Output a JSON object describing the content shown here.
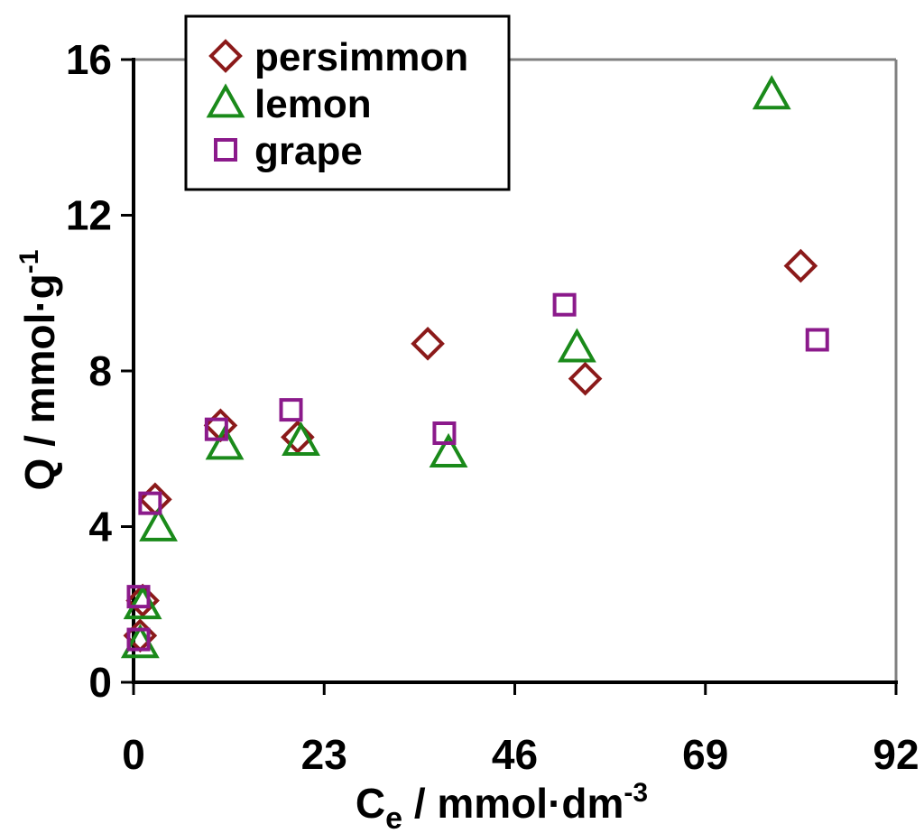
{
  "chart_data": {
    "type": "scatter",
    "title": "",
    "xlabel": {
      "base": "C",
      "sub": "e",
      "rest": " / mmol·dm",
      "sup": "-3"
    },
    "ylabel": {
      "base": "Q / mmol·g",
      "sup": "-1"
    },
    "xlim": [
      0,
      92
    ],
    "ylim": [
      0,
      16
    ],
    "xticks": [
      0,
      23,
      46,
      69,
      92
    ],
    "yticks": [
      0,
      4,
      8,
      12,
      16
    ],
    "grid": false,
    "legend_position": "top-left",
    "series": [
      {
        "name": "persimmon",
        "marker": "diamond",
        "color": "#8B1A1A",
        "x": [
          0.8,
          1.1,
          2.6,
          10.5,
          19.8,
          35.5,
          54.5,
          80.5
        ],
        "y": [
          1.2,
          2.1,
          4.7,
          6.6,
          6.3,
          8.7,
          7.8,
          10.7
        ]
      },
      {
        "name": "lemon",
        "marker": "triangle",
        "color": "#1A8A1A",
        "x": [
          0.8,
          1.1,
          3.0,
          11.0,
          20.2,
          38.0,
          53.5,
          77.0
        ],
        "y": [
          1.0,
          2.0,
          4.0,
          6.1,
          6.2,
          5.9,
          8.6,
          15.1
        ]
      },
      {
        "name": "grape",
        "marker": "square",
        "color": "#8B1A8B",
        "x": [
          0.6,
          0.6,
          2.0,
          10.0,
          19.0,
          37.5,
          52.0,
          82.5
        ],
        "y": [
          1.1,
          2.2,
          4.6,
          6.5,
          7.0,
          6.4,
          9.7,
          8.8
        ]
      }
    ]
  }
}
